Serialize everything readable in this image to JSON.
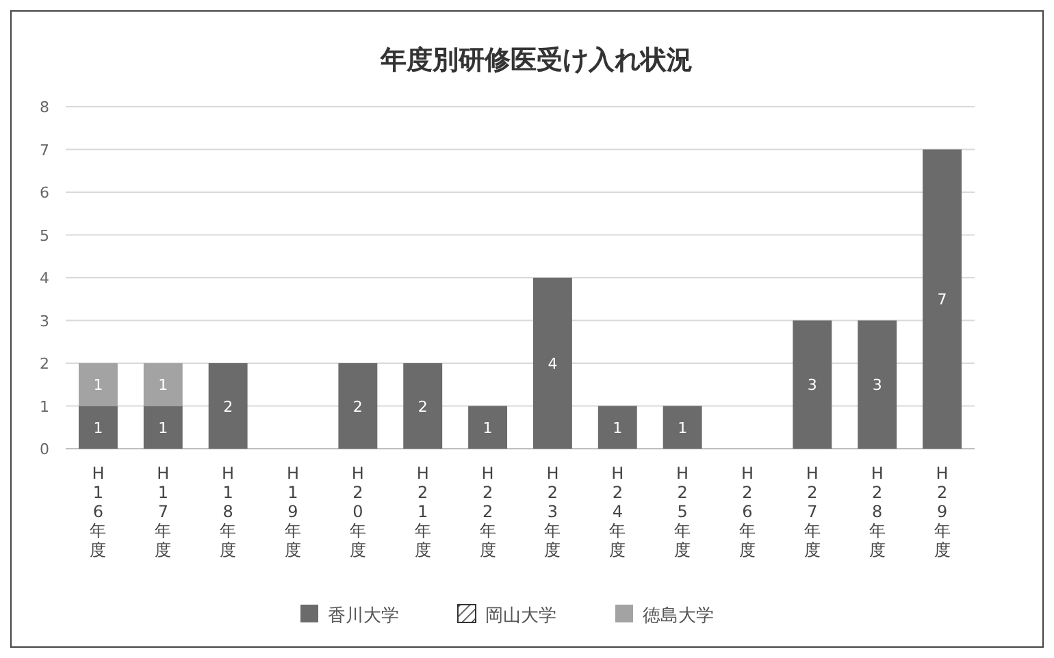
{
  "chart_data": {
    "type": "bar",
    "title": "年度別研修医受け入れ状況",
    "stacked": true,
    "categories": [
      "H16年度",
      "H17年度",
      "H18年度",
      "H19年度",
      "H20年度",
      "H21年度",
      "H22年度",
      "H23年度",
      "H24年度",
      "H25年度",
      "H26年度",
      "H27年度",
      "H28年度",
      "H29年度"
    ],
    "series": [
      {
        "name": "香川大学",
        "color": "#6b6b6b",
        "values": [
          1,
          1,
          2,
          0,
          2,
          2,
          1,
          4,
          1,
          1,
          0,
          3,
          3,
          7
        ],
        "value_labels": [
          "1",
          "1",
          "2",
          null,
          "2",
          "2",
          "1",
          "4",
          "1",
          "1",
          null,
          "3",
          "3",
          "7"
        ]
      },
      {
        "name": "岡山大学",
        "color": "#333333",
        "values": [
          0,
          0,
          0,
          0,
          0,
          0,
          0,
          0,
          0,
          0,
          0,
          0,
          0,
          0
        ]
      },
      {
        "name": "徳島大学",
        "color": "#a3a3a3",
        "values": [
          1,
          1,
          0,
          0,
          0,
          0,
          0,
          0,
          0,
          0,
          0,
          0,
          0,
          0
        ],
        "value_labels": [
          "1",
          "1",
          null,
          null,
          null,
          null,
          null,
          null,
          null,
          null,
          null,
          null,
          null,
          null
        ]
      }
    ],
    "ylim": [
      0,
      8
    ],
    "yticks": [
      0,
      1,
      2,
      3,
      4,
      5,
      6,
      7,
      8
    ],
    "grid": "y",
    "legend": "bottom"
  }
}
